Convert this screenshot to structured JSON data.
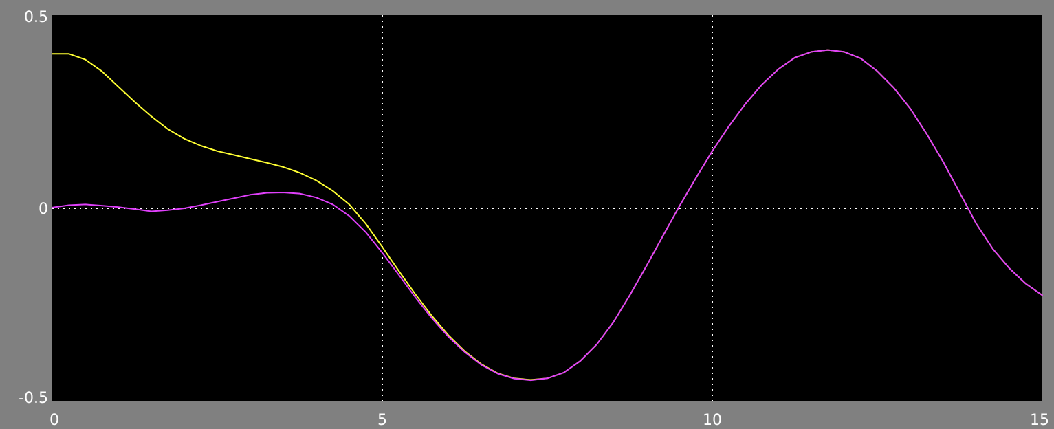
{
  "colors": {
    "background": "#808080",
    "plot_area": "#000000",
    "grid": "#ffffff"
  },
  "chart_data": {
    "type": "line",
    "title": "",
    "xlabel": "",
    "ylabel": "",
    "xlim": [
      0,
      15
    ],
    "ylim": [
      -0.5,
      0.5
    ],
    "grid": true,
    "grid_style": "dotted",
    "legend": "none",
    "x_ticks": [
      0,
      5,
      10,
      15
    ],
    "x_tick_labels": [
      "0",
      "5",
      "10",
      "15"
    ],
    "y_ticks": [
      0.5,
      0,
      -0.5
    ],
    "y_tick_labels": [
      "0.5",
      "0",
      "-0.5"
    ],
    "series": [
      {
        "color": "#ffff33",
        "x": [
          0,
          0.25,
          0.5,
          0.75,
          1,
          1.25,
          1.5,
          1.75,
          2,
          2.25,
          2.5,
          2.75,
          3,
          3.25,
          3.5,
          3.75,
          4,
          4.25,
          4.5,
          4.75,
          5,
          5.25,
          5.5,
          5.75,
          6,
          6.25,
          6.5,
          6.75,
          7,
          7.25,
          7.5,
          7.75,
          8,
          8.25,
          8.5,
          8.75,
          9,
          9.25,
          9.5,
          9.75,
          10,
          10.25,
          10.5,
          10.75,
          11,
          11.25,
          11.5,
          11.75,
          12,
          12.25,
          12.5,
          12.75,
          13,
          13.25,
          13.5,
          13.75,
          14,
          14.25,
          14.5,
          14.75,
          15
        ],
        "y": [
          0.4,
          0.4,
          0.385,
          0.355,
          0.315,
          0.275,
          0.238,
          0.205,
          0.18,
          0.162,
          0.148,
          0.138,
          0.128,
          0.118,
          0.107,
          0.092,
          0.072,
          0.045,
          0.01,
          -0.04,
          -0.1,
          -0.162,
          -0.222,
          -0.278,
          -0.328,
          -0.37,
          -0.403,
          -0.427,
          -0.44,
          -0.444,
          -0.44,
          -0.425,
          -0.395,
          -0.352,
          -0.295,
          -0.225,
          -0.15,
          -0.072,
          0.005,
          0.078,
          0.148,
          0.212,
          0.27,
          0.32,
          0.36,
          0.39,
          0.405,
          0.41,
          0.405,
          0.388,
          0.355,
          0.312,
          0.258,
          0.192,
          0.12,
          0.04,
          -0.04,
          -0.105,
          -0.155,
          -0.195,
          -0.225
        ]
      },
      {
        "color": "#e040fb",
        "x": [
          0,
          0.25,
          0.5,
          0.75,
          1,
          1.25,
          1.5,
          1.75,
          2,
          2.25,
          2.5,
          2.75,
          3,
          3.25,
          3.5,
          3.75,
          4,
          4.25,
          4.5,
          4.75,
          5,
          5.25,
          5.5,
          5.75,
          6,
          6.25,
          6.5,
          6.75,
          7,
          7.25,
          7.5,
          7.75,
          8,
          8.25,
          8.5,
          8.75,
          9,
          9.25,
          9.5,
          9.75,
          10,
          10.25,
          10.5,
          10.75,
          11,
          11.25,
          11.5,
          11.75,
          12,
          12.25,
          12.5,
          12.75,
          13,
          13.25,
          13.5,
          13.75,
          14,
          14.25,
          14.5,
          14.75,
          15
        ],
        "y": [
          0.002,
          0.008,
          0.01,
          0.007,
          0.003,
          -0.002,
          -0.008,
          -0.005,
          0.0,
          0.008,
          0.017,
          0.026,
          0.035,
          0.04,
          0.041,
          0.038,
          0.028,
          0.01,
          -0.02,
          -0.062,
          -0.115,
          -0.172,
          -0.23,
          -0.284,
          -0.332,
          -0.372,
          -0.405,
          -0.428,
          -0.441,
          -0.445,
          -0.44,
          -0.425,
          -0.395,
          -0.352,
          -0.295,
          -0.225,
          -0.15,
          -0.072,
          0.005,
          0.078,
          0.148,
          0.212,
          0.27,
          0.32,
          0.36,
          0.39,
          0.405,
          0.41,
          0.405,
          0.388,
          0.355,
          0.312,
          0.258,
          0.192,
          0.12,
          0.04,
          -0.04,
          -0.105,
          -0.155,
          -0.195,
          -0.225
        ]
      }
    ]
  }
}
